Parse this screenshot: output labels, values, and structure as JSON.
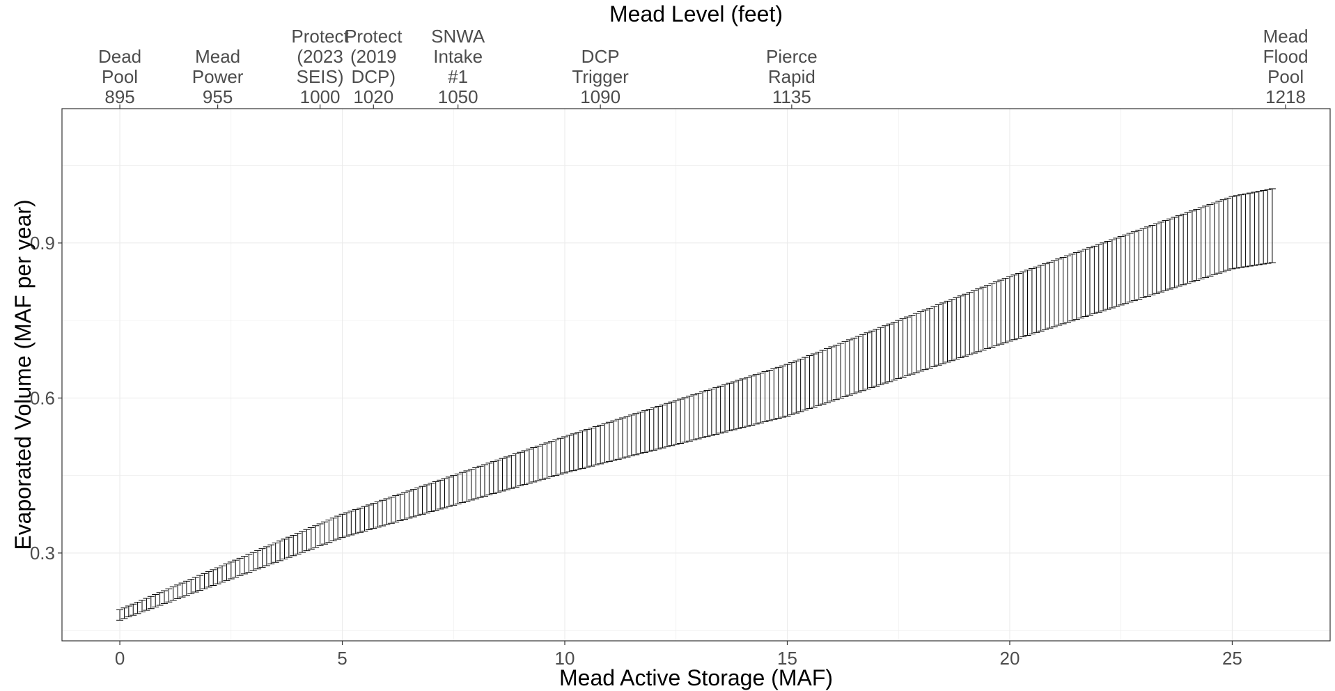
{
  "chart_data": {
    "type": "errorbar",
    "title": "",
    "xlabel": "Mead Active Storage (MAF)",
    "ylabel": "Evaporated Volume (MAF per year)",
    "top_axis_title": "Mead Level (feet)",
    "xlim": [
      -1.3,
      27.2
    ],
    "ylim": [
      0.13,
      1.16
    ],
    "xticks": [
      0,
      5,
      10,
      15,
      20,
      25
    ],
    "yticks": [
      0.3,
      0.6,
      0.9
    ],
    "grid": true,
    "errorbar_series": {
      "x_start": 0,
      "x_end": 25.9,
      "x_step": 0.1,
      "lower_anchors": [
        [
          0,
          0.17
        ],
        [
          5,
          0.33
        ],
        [
          10,
          0.455
        ],
        [
          15,
          0.565
        ],
        [
          20,
          0.71
        ],
        [
          25,
          0.85
        ],
        [
          25.9,
          0.862
        ]
      ],
      "upper_anchors": [
        [
          0,
          0.19
        ],
        [
          5,
          0.375
        ],
        [
          10,
          0.525
        ],
        [
          15,
          0.665
        ],
        [
          20,
          0.835
        ],
        [
          25,
          0.99
        ],
        [
          25.9,
          1.005
        ]
      ]
    },
    "level_markers": [
      {
        "label": [
          "Dead",
          "Pool",
          "895"
        ],
        "x": 0
      },
      {
        "label": [
          "Mead",
          "Power",
          "955"
        ],
        "x": 2.2
      },
      {
        "label": [
          "Protect",
          "(2023",
          "SEIS)",
          "1000"
        ],
        "x": 4.5
      },
      {
        "label": [
          "Protect",
          "(2019",
          "DCP)",
          "1020"
        ],
        "x": 5.7
      },
      {
        "label": [
          "SNWA",
          "Intake",
          "#1",
          "1050"
        ],
        "x": 7.6
      },
      {
        "label": [
          "DCP",
          "Trigger",
          "1090"
        ],
        "x": 10.8
      },
      {
        "label": [
          "Pierce",
          "Rapid",
          "1135"
        ],
        "x": 15.1
      },
      {
        "label": [
          "Mead",
          "Flood",
          "Pool",
          "1218"
        ],
        "x": 26.2
      }
    ]
  }
}
